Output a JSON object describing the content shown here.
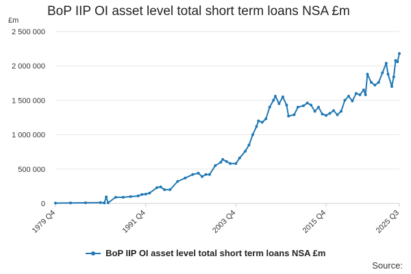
{
  "chart_data": {
    "type": "line",
    "title": "BoP IIP OI asset level total short term loans NSA £m",
    "ylabel": "£m",
    "xlabel": "",
    "ylim": [
      0,
      2500000
    ],
    "yticks": [
      0,
      500000,
      1000000,
      1500000,
      2000000,
      2500000
    ],
    "ytick_labels": [
      "0",
      "500 000",
      "1 000 000",
      "1 500 000",
      "2 000 000",
      "2 500 000"
    ],
    "x_range": [
      "1979 Q4",
      "2025 Q3"
    ],
    "xtick_labels": [
      "1979 Q4",
      "1991 Q4",
      "2003 Q4",
      "2015 Q4",
      "2025 Q3"
    ],
    "grid": "horizontal",
    "legend_position": "bottom",
    "color": "#1f77b4",
    "series": [
      {
        "name": "BoP IIP OI asset level total short term loans NSA £m",
        "points": [
          [
            "1979 Q4",
            5000
          ],
          [
            "1981 Q4",
            8000
          ],
          [
            "1983 Q4",
            10000
          ],
          [
            "1985 Q4",
            12000
          ],
          [
            "1986 Q4",
            10000
          ],
          [
            "1986 Q2",
            8000
          ],
          [
            "1986 Q3",
            95000
          ],
          [
            "1987 Q4",
            90000
          ],
          [
            "1988 Q4",
            90000
          ],
          [
            "1989 Q4",
            100000
          ],
          [
            "1990 Q4",
            110000
          ],
          [
            "1991 Q2",
            130000
          ],
          [
            "1991 Q4",
            135000
          ],
          [
            "1992 Q2",
            150000
          ],
          [
            "1993 Q2",
            230000
          ],
          [
            "1993 Q4",
            240000
          ],
          [
            "1994 Q2",
            200000
          ],
          [
            "1995 Q1",
            200000
          ],
          [
            "1996 Q1",
            320000
          ],
          [
            "1997 Q1",
            370000
          ],
          [
            "1998 Q1",
            420000
          ],
          [
            "1998 Q4",
            440000
          ],
          [
            "1999 Q2",
            390000
          ],
          [
            "1999 Q4",
            420000
          ],
          [
            "2000 Q2",
            420000
          ],
          [
            "2001 Q1",
            550000
          ],
          [
            "2001 Q4",
            600000
          ],
          [
            "2002 Q1",
            640000
          ],
          [
            "2002 Q3",
            610000
          ],
          [
            "2003 Q1",
            580000
          ],
          [
            "2003 Q4",
            580000
          ],
          [
            "2004 Q2",
            660000
          ],
          [
            "2005 Q1",
            760000
          ],
          [
            "2005 Q3",
            850000
          ],
          [
            "2006 Q1",
            1000000
          ],
          [
            "2006 Q3",
            1120000
          ],
          [
            "2006 Q4",
            1200000
          ],
          [
            "2007 Q2",
            1180000
          ],
          [
            "2007 Q4",
            1230000
          ],
          [
            "2008 Q2",
            1400000
          ],
          [
            "2008 Q4",
            1500000
          ],
          [
            "2009 Q1",
            1560000
          ],
          [
            "2009 Q3",
            1450000
          ],
          [
            "2010 Q1",
            1550000
          ],
          [
            "2010 Q3",
            1430000
          ],
          [
            "2010 Q4",
            1270000
          ],
          [
            "2011 Q3",
            1290000
          ],
          [
            "2012 Q1",
            1400000
          ],
          [
            "2012 Q4",
            1420000
          ],
          [
            "2013 Q2",
            1460000
          ],
          [
            "2013 Q4",
            1430000
          ],
          [
            "2014 Q2",
            1340000
          ],
          [
            "2014 Q4",
            1400000
          ],
          [
            "2015 Q2",
            1300000
          ],
          [
            "2015 Q4",
            1280000
          ],
          [
            "2016 Q2",
            1310000
          ],
          [
            "2016 Q4",
            1350000
          ],
          [
            "2017 Q2",
            1290000
          ],
          [
            "2017 Q4",
            1340000
          ],
          [
            "2018 Q2",
            1500000
          ],
          [
            "2018 Q4",
            1560000
          ],
          [
            "2019 Q2",
            1490000
          ],
          [
            "2019 Q4",
            1600000
          ],
          [
            "2020 Q2",
            1580000
          ],
          [
            "2020 Q4",
            1650000
          ],
          [
            "2021 Q1",
            1580000
          ],
          [
            "2021 Q2",
            1880000
          ],
          [
            "2021 Q4",
            1760000
          ],
          [
            "2022 Q2",
            1720000
          ],
          [
            "2022 Q4",
            1760000
          ],
          [
            "2023 Q2",
            1900000
          ],
          [
            "2023 Q4",
            2040000
          ],
          [
            "2024 Q1",
            1880000
          ],
          [
            "2024 Q3",
            1700000
          ],
          [
            "2024 Q4",
            1840000
          ],
          [
            "2025 Q1",
            2080000
          ],
          [
            "2025 Q2",
            2060000
          ],
          [
            "2025 Q3",
            2180000
          ]
        ]
      }
    ]
  },
  "source_label": "Source:"
}
